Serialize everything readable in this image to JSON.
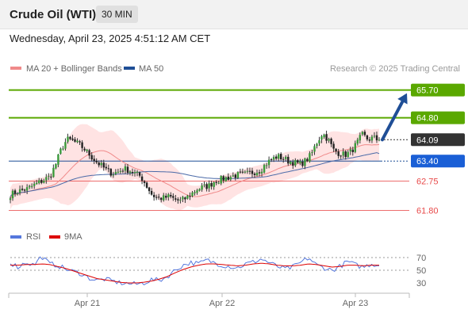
{
  "header": {
    "title": "Crude Oil (WTI)",
    "timeframe": "30 MIN",
    "date": "Wednesday, April 23, 2025 4:51:12 AM CET"
  },
  "legend": {
    "ma20_bb": "MA 20 + Bollinger Bands",
    "ma50": "MA 50",
    "credit": "Research © 2025 Trading Central"
  },
  "rsi_legend": {
    "rsi": "RSI",
    "ma": "9MA"
  },
  "colors": {
    "green": "#5aa800",
    "blue": "#1f4e96",
    "red": "#e84a4a",
    "dark": "#333333",
    "rsi": "#5577dd",
    "rsi_ma": "#dd0000",
    "band": "#ffe3e3",
    "ma20": "#f08a8a",
    "ma50": "#4a6aa8"
  },
  "chart_data": [
    {
      "type": "candlestick",
      "title": "Crude Oil (WTI)",
      "x_tick_labels": [
        "Apr 21",
        "Apr 22",
        "Apr 23"
      ],
      "ylim": [
        61.3,
        66.1
      ],
      "levels": [
        {
          "label": "65.70",
          "value": 65.7,
          "role": "resistance",
          "color": "#5aa800"
        },
        {
          "label": "64.80",
          "value": 64.8,
          "role": "resistance",
          "color": "#5aa800"
        },
        {
          "label": "64.09",
          "value": 64.09,
          "role": "last_price",
          "color": "#333333"
        },
        {
          "label": "63.40",
          "value": 63.4,
          "role": "pivot",
          "color": "#1f4e96"
        },
        {
          "label": "62.75",
          "value": 62.75,
          "role": "support",
          "color": "#e84a4a"
        },
        {
          "label": "61.80",
          "value": 61.8,
          "role": "support",
          "color": "#e84a4a"
        }
      ],
      "close_series": [
        62.3,
        62.4,
        62.45,
        62.5,
        62.6,
        62.7,
        62.8,
        62.9,
        63.3,
        63.8,
        64.1,
        64.05,
        63.95,
        63.8,
        63.6,
        63.4,
        63.25,
        63.1,
        63.0,
        63.05,
        63.15,
        63.1,
        63.0,
        62.9,
        62.6,
        62.3,
        62.2,
        62.2,
        62.25,
        62.15,
        62.1,
        62.2,
        62.35,
        62.5,
        62.55,
        62.6,
        62.75,
        62.8,
        62.85,
        62.9,
        62.95,
        62.95,
        63.0,
        63.05,
        63.1,
        63.3,
        63.45,
        63.55,
        63.5,
        63.4,
        63.35,
        63.3,
        63.4,
        63.6,
        64.0,
        64.3,
        64.1,
        63.75,
        63.65,
        63.6,
        63.7,
        63.95,
        64.25,
        64.1,
        64.15,
        64.05
      ],
      "ma50_start": 62.35,
      "ma50_end": 63.64,
      "forecast_target": 65.7
    },
    {
      "type": "line",
      "title": "RSI",
      "ylim": [
        20,
        80
      ],
      "y_ticks": [
        70,
        50,
        30
      ],
      "series_names": [
        "RSI",
        "9MA"
      ],
      "rsi_keypoints": [
        62,
        55,
        63,
        58,
        72,
        60,
        58,
        52,
        48,
        45,
        38,
        34,
        36,
        33,
        30,
        29,
        28,
        30,
        35,
        34,
        40,
        50,
        58,
        62,
        60,
        66,
        62,
        58,
        56,
        54,
        60,
        63,
        68,
        62,
        56,
        52,
        55,
        62,
        70,
        58,
        54,
        50,
        56,
        64,
        58,
        55,
        60,
        58
      ],
      "ma_keypoints": [
        58,
        58,
        59,
        59,
        60,
        59,
        56,
        53,
        49,
        45,
        41,
        37,
        35,
        33,
        31,
        30,
        30,
        31,
        33,
        36,
        40,
        46,
        51,
        55,
        58,
        60,
        60,
        59,
        58,
        57,
        58,
        60,
        61,
        60,
        58,
        57,
        57,
        58,
        60,
        59,
        57,
        55,
        56,
        58,
        58,
        57,
        58,
        58
      ]
    }
  ]
}
